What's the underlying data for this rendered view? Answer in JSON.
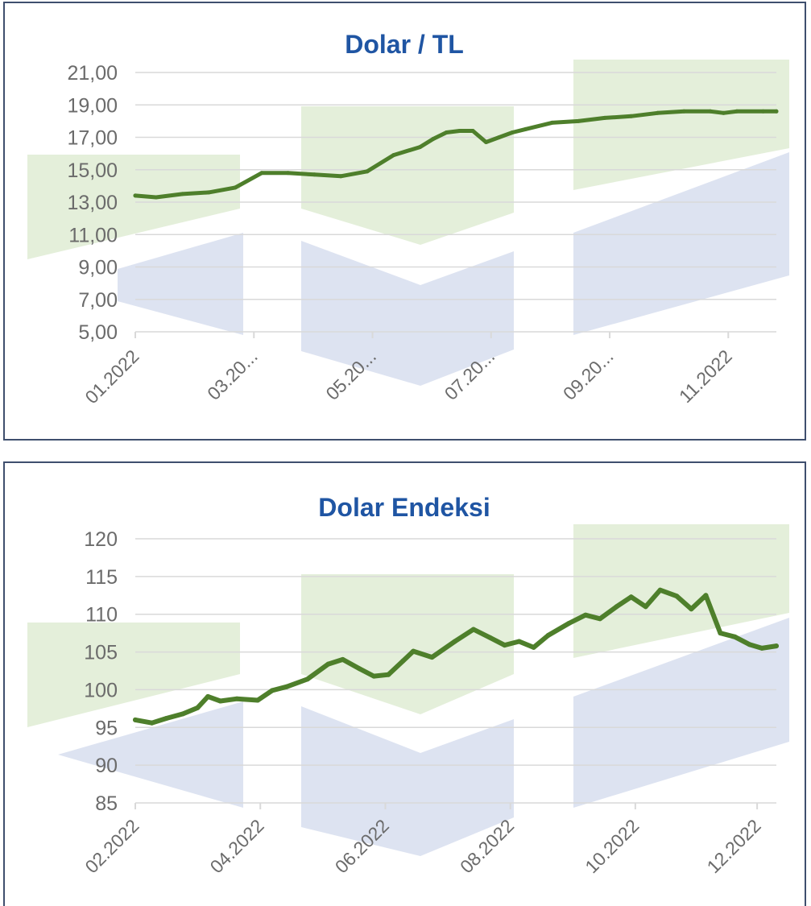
{
  "charts_meta": {
    "line_color": "#4e7f2b",
    "title_color": "#1f55a3",
    "label_color": "#6b6b6b",
    "grid_color": "#d9d9d9",
    "bg_shape_green": "#e4efda",
    "bg_shape_blue": "#dde3f1"
  },
  "chart_data": [
    {
      "type": "line",
      "title": "Dolar / TL",
      "xlabel": "",
      "ylabel": "",
      "ylim": [
        5,
        21
      ],
      "yticks": [
        "21,00",
        "19,00",
        "17,00",
        "15,00",
        "13,00",
        "11,00",
        "9,00",
        "7,00",
        "5,00"
      ],
      "ytick_values": [
        21,
        19,
        17,
        15,
        13,
        11,
        9,
        7,
        5
      ],
      "xticks": [
        "01.2022",
        "03.20...",
        "05.20...",
        "07.20...",
        "09.20...",
        "11.2022"
      ],
      "grid": true,
      "x_start": "2022-01-03",
      "x_end": "2022-12-09",
      "series": [
        {
          "x": [
            "2022-01-03",
            "2022-01-14",
            "2022-01-28",
            "2022-02-11",
            "2022-02-25",
            "2022-03-11",
            "2022-03-25",
            "2022-04-08",
            "2022-04-22",
            "2022-05-06",
            "2022-05-20",
            "2022-06-03",
            "2022-06-10",
            "2022-06-17",
            "2022-06-24",
            "2022-07-01",
            "2022-07-08",
            "2022-07-15",
            "2022-07-22",
            "2022-07-29",
            "2022-08-12",
            "2022-08-26",
            "2022-09-09",
            "2022-09-23",
            "2022-10-07",
            "2022-10-21",
            "2022-11-04",
            "2022-11-11",
            "2022-11-18",
            "2022-12-02",
            "2022-12-09"
          ],
          "values": [
            13.4,
            13.3,
            13.5,
            13.6,
            13.9,
            14.8,
            14.8,
            14.7,
            14.6,
            14.9,
            15.9,
            16.4,
            16.9,
            17.3,
            17.4,
            17.4,
            16.7,
            17.0,
            17.3,
            17.5,
            17.9,
            18.0,
            18.2,
            18.3,
            18.5,
            18.6,
            18.6,
            18.5,
            18.6,
            18.6,
            18.6
          ]
        }
      ]
    },
    {
      "type": "line",
      "title": "Dolar Endeksi",
      "xlabel": "",
      "ylabel": "",
      "ylim": [
        85,
        120
      ],
      "yticks": [
        "120",
        "115",
        "110",
        "105",
        "100",
        "95",
        "90",
        "85"
      ],
      "ytick_values": [
        120,
        115,
        110,
        105,
        100,
        95,
        90,
        85
      ],
      "xticks": [
        "02.2022",
        "04.2022",
        "06.2022",
        "08.2022",
        "10.2022",
        "12.2022"
      ],
      "grid": true,
      "x_start": "2022-02-01",
      "x_end": "2022-12-07",
      "series": [
        {
          "x": [
            "2022-02-01",
            "2022-02-09",
            "2022-02-16",
            "2022-02-24",
            "2022-03-03",
            "2022-03-08",
            "2022-03-14",
            "2022-03-22",
            "2022-04-01",
            "2022-04-08",
            "2022-04-15",
            "2022-04-25",
            "2022-05-05",
            "2022-05-12",
            "2022-05-20",
            "2022-05-27",
            "2022-06-03",
            "2022-06-10",
            "2022-06-15",
            "2022-06-24",
            "2022-07-05",
            "2022-07-14",
            "2022-07-22",
            "2022-07-29",
            "2022-08-05",
            "2022-08-12",
            "2022-08-19",
            "2022-08-29",
            "2022-09-06",
            "2022-09-13",
            "2022-09-21",
            "2022-09-28",
            "2022-10-05",
            "2022-10-12",
            "2022-10-20",
            "2022-10-27",
            "2022-11-03",
            "2022-11-10",
            "2022-11-17",
            "2022-11-24",
            "2022-11-30",
            "2022-12-07"
          ],
          "values": [
            96.0,
            95.6,
            96.2,
            96.8,
            97.6,
            99.1,
            98.5,
            98.8,
            98.6,
            99.9,
            100.4,
            101.4,
            103.4,
            104.0,
            102.8,
            101.8,
            102.0,
            103.8,
            105.1,
            104.3,
            106.4,
            108.0,
            106.9,
            105.9,
            106.4,
            105.6,
            107.2,
            108.8,
            109.9,
            109.4,
            111.0,
            112.3,
            111.0,
            113.2,
            112.4,
            110.7,
            112.5,
            107.5,
            107.0,
            106.0,
            105.5,
            105.8
          ]
        }
      ]
    }
  ]
}
